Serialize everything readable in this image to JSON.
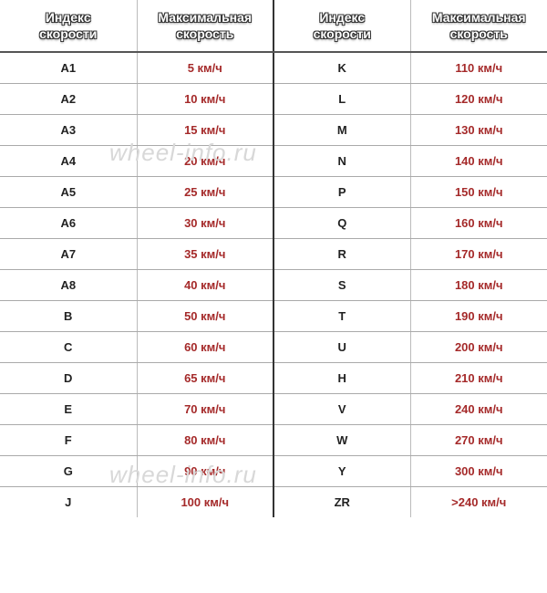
{
  "headers": {
    "index": "Индекс<br>скорости",
    "speed": "Максимальная<br>скорость"
  },
  "watermark": "wheel-info.ru",
  "speed_color": "#a52a2a",
  "rows": [
    {
      "i1": "A1",
      "s1": "5 км/ч",
      "i2": "K",
      "s2": "110 км/ч"
    },
    {
      "i1": "A2",
      "s1": "10 км/ч",
      "i2": "L",
      "s2": "120 км/ч"
    },
    {
      "i1": "A3",
      "s1": "15 км/ч",
      "i2": "M",
      "s2": "130 км/ч"
    },
    {
      "i1": "A4",
      "s1": "20 км/ч",
      "i2": "N",
      "s2": "140 км/ч"
    },
    {
      "i1": "A5",
      "s1": "25 км/ч",
      "i2": "P",
      "s2": "150 км/ч"
    },
    {
      "i1": "A6",
      "s1": "30 км/ч",
      "i2": "Q",
      "s2": "160 км/ч"
    },
    {
      "i1": "A7",
      "s1": "35 км/ч",
      "i2": "R",
      "s2": "170 км/ч"
    },
    {
      "i1": "A8",
      "s1": "40 км/ч",
      "i2": "S",
      "s2": "180 км/ч"
    },
    {
      "i1": "B",
      "s1": "50 км/ч",
      "i2": "T",
      "s2": "190 км/ч"
    },
    {
      "i1": "C",
      "s1": "60 км/ч",
      "i2": "U",
      "s2": "200 км/ч"
    },
    {
      "i1": "D",
      "s1": "65 км/ч",
      "i2": "H",
      "s2": "210 км/ч"
    },
    {
      "i1": "E",
      "s1": "70 км/ч",
      "i2": "V",
      "s2": "240 км/ч"
    },
    {
      "i1": "F",
      "s1": "80 км/ч",
      "i2": "W",
      "s2": "270 км/ч"
    },
    {
      "i1": "G",
      "s1": "90 км/ч",
      "i2": "Y",
      "s2": "300 км/ч"
    },
    {
      "i1": "J",
      "s1": "100 км/ч",
      "i2": "ZR",
      "s2": ">240 км/ч"
    }
  ]
}
